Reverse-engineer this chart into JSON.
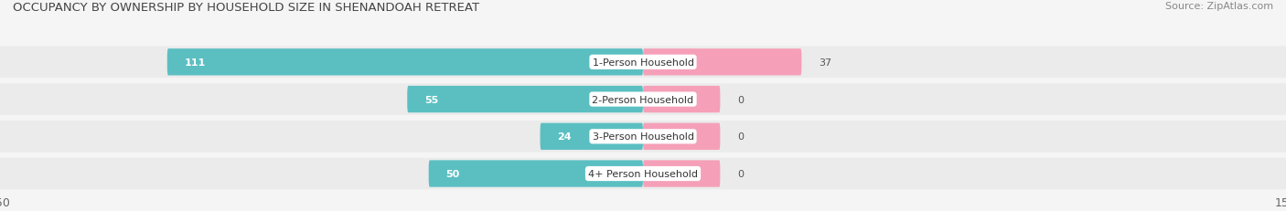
{
  "title": "OCCUPANCY BY OWNERSHIP BY HOUSEHOLD SIZE IN SHENANDOAH RETREAT",
  "source": "Source: ZipAtlas.com",
  "categories": [
    "1-Person Household",
    "2-Person Household",
    "3-Person Household",
    "4+ Person Household"
  ],
  "owner_values": [
    111,
    55,
    24,
    50
  ],
  "renter_values": [
    37,
    0,
    0,
    0
  ],
  "owner_color": "#5bbfc2",
  "renter_color": "#f5a0b8",
  "background_color": "#f5f5f5",
  "row_bg_color": "#ebebeb",
  "xlim": 150,
  "title_fontsize": 9.5,
  "source_fontsize": 8,
  "label_fontsize": 8,
  "value_fontsize": 8,
  "tick_fontsize": 9,
  "legend_fontsize": 8.5
}
